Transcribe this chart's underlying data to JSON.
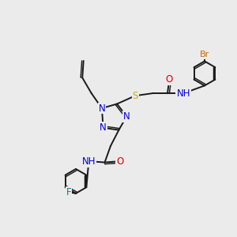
{
  "bg_color": "#ebebeb",
  "bond_color": "#1a1a1a",
  "bond_width": 1.4,
  "atom_colors": {
    "N": "#0000e0",
    "O": "#e00000",
    "S": "#b8b800",
    "F": "#008080",
    "Br": "#cc6600",
    "C": "#1a1a1a",
    "H": "#408080"
  },
  "font_size": 8.5,
  "fig_size": [
    3.0,
    3.0
  ],
  "dpi": 100
}
